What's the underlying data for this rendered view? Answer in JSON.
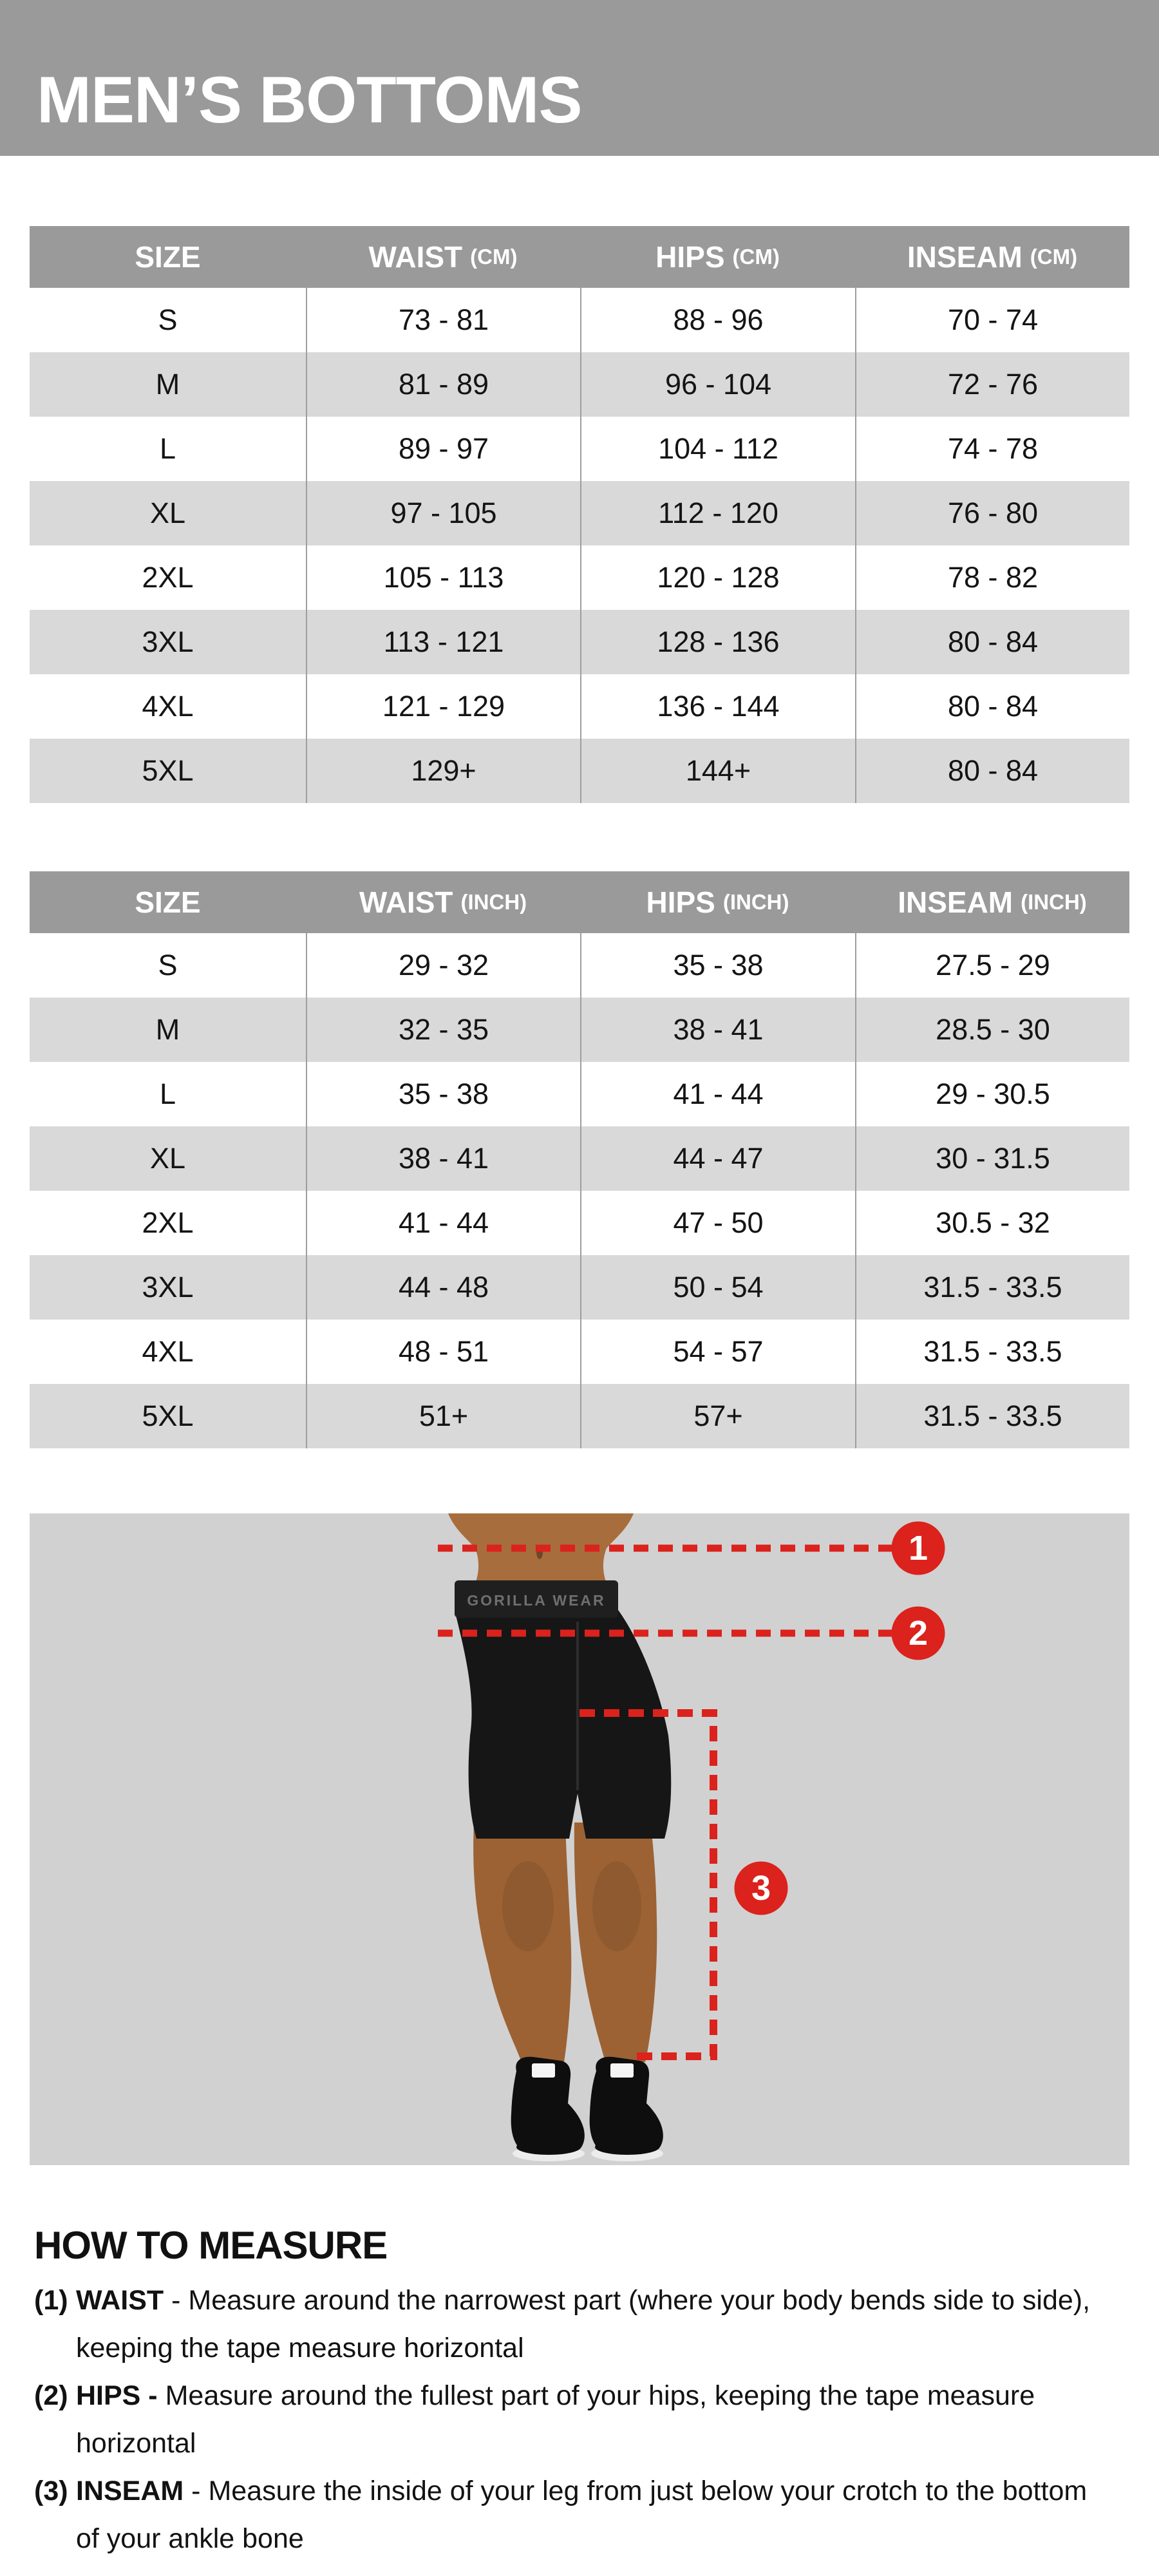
{
  "header": {
    "title": "MEN’S BOTTOMS"
  },
  "tables": [
    {
      "id": "cm",
      "columns": [
        {
          "label": "SIZE",
          "unit": ""
        },
        {
          "label": "WAIST",
          "unit": "(CM)"
        },
        {
          "label": "HIPS",
          "unit": "(CM)"
        },
        {
          "label": "INSEAM",
          "unit": "(CM)"
        }
      ],
      "rows": [
        {
          "size": "S",
          "waist": "73 - 81",
          "hips": "88 - 96",
          "inseam": "70 - 74"
        },
        {
          "size": "M",
          "waist": "81 - 89",
          "hips": "96 - 104",
          "inseam": "72 - 76"
        },
        {
          "size": "L",
          "waist": "89 - 97",
          "hips": "104 - 112",
          "inseam": "74 - 78"
        },
        {
          "size": "XL",
          "waist": "97 - 105",
          "hips": "112 - 120",
          "inseam": "76 - 80"
        },
        {
          "size": "2XL",
          "waist": "105 - 113",
          "hips": "120 - 128",
          "inseam": "78 - 82"
        },
        {
          "size": "3XL",
          "waist": "113 - 121",
          "hips": "128 - 136",
          "inseam": "80 - 84"
        },
        {
          "size": "4XL",
          "waist": "121 - 129",
          "hips": "136 - 144",
          "inseam": "80 - 84"
        },
        {
          "size": "5XL",
          "waist": "129+",
          "hips": "144+",
          "inseam": "80 - 84"
        }
      ]
    },
    {
      "id": "inch",
      "columns": [
        {
          "label": "SIZE",
          "unit": ""
        },
        {
          "label": "WAIST",
          "unit": "(INCH)"
        },
        {
          "label": "HIPS",
          "unit": "(INCH)"
        },
        {
          "label": "INSEAM",
          "unit": "(INCH)"
        }
      ],
      "rows": [
        {
          "size": "S",
          "waist": "29 - 32",
          "hips": "35 - 38",
          "inseam": "27.5 - 29"
        },
        {
          "size": "M",
          "waist": "32 - 35",
          "hips": "38 - 41",
          "inseam": "28.5 - 30"
        },
        {
          "size": "L",
          "waist": "35 - 38",
          "hips": "41 - 44",
          "inseam": "29 - 30.5"
        },
        {
          "size": "XL",
          "waist": "38 - 41",
          "hips": "44 - 47",
          "inseam": "30 - 31.5"
        },
        {
          "size": "2XL",
          "waist": "41 - 44",
          "hips": "47 - 50",
          "inseam": "30.5 - 32"
        },
        {
          "size": "3XL",
          "waist": "44 - 48",
          "hips": "50 - 54",
          "inseam": "31.5 - 33.5"
        },
        {
          "size": "4XL",
          "waist": "48 - 51",
          "hips": "54 - 57",
          "inseam": "31.5 - 33.5"
        },
        {
          "size": "5XL",
          "waist": "51+",
          "hips": "57+",
          "inseam": "31.5 - 33.5"
        }
      ]
    }
  ],
  "figure": {
    "badges": [
      "1",
      "2",
      "3"
    ],
    "waistband_text": "GORILLA WEAR"
  },
  "how_to_measure": {
    "heading": "HOW TO MEASURE",
    "items": [
      {
        "num": "(1)",
        "term": "WAIST",
        "sep": " - ",
        "line1": "Measure around the narrowest part (where your body bends side to side),",
        "line2": "keeping the tape measure horizontal"
      },
      {
        "num": "(2)",
        "term": "HIPS -",
        "sep": " ",
        "line1": "Measure around the fullest part of your hips, keeping the tape measure",
        "line2": "horizontal"
      },
      {
        "num": "(3)",
        "term": "INSEAM",
        "sep": " - ",
        "line1": "Measure the inside of your leg from just below your crotch to the bottom",
        "line2": "of your ankle bone"
      }
    ]
  },
  "colors": {
    "header_gray": "#9a9a9a",
    "row_alt_gray": "#d9d9d9",
    "panel_gray": "#d1d1d1",
    "accent_red": "#db221c",
    "divider_gray": "#9e9e9e",
    "text_dark": "#141414",
    "white": "#ffffff"
  }
}
